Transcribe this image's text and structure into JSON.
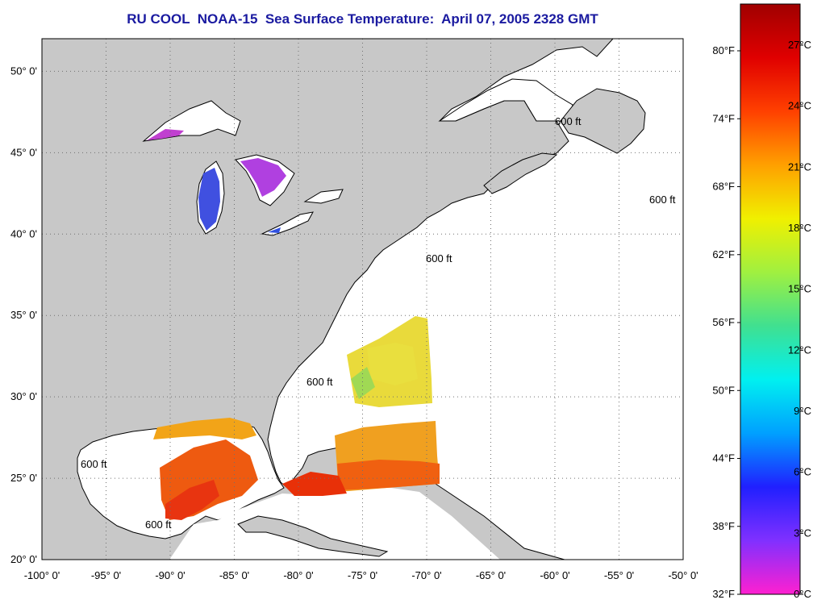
{
  "title": "RU COOL  NOAA-15  Sea Surface Temperature:  April 07, 2005 2328 GMT",
  "map": {
    "lon_range": [
      -100,
      -50
    ],
    "lat_range": [
      20,
      52
    ],
    "lon_ticks": [
      {
        "v": -100,
        "label": "-100° 0'"
      },
      {
        "v": -95,
        "label": "-95° 0'"
      },
      {
        "v": -90,
        "label": "-90° 0'"
      },
      {
        "v": -85,
        "label": "-85° 0'"
      },
      {
        "v": -80,
        "label": "-80° 0'"
      },
      {
        "v": -75,
        "label": "-75° 0'"
      },
      {
        "v": -70,
        "label": "-70° 0'"
      },
      {
        "v": -65,
        "label": "-65° 0'"
      },
      {
        "v": -60,
        "label": "-60° 0'"
      },
      {
        "v": -55,
        "label": "-55° 0'"
      },
      {
        "v": -50,
        "label": "-50° 0'"
      }
    ],
    "lat_ticks": [
      {
        "v": 20,
        "label": "20° 0'"
      },
      {
        "v": 25,
        "label": "25° 0'"
      },
      {
        "v": 30,
        "label": "30° 0'"
      },
      {
        "v": 35,
        "label": "35° 0'"
      },
      {
        "v": 40,
        "label": "40° 0'"
      },
      {
        "v": 45,
        "label": "45° 0'"
      },
      {
        "v": 50,
        "label": "50° 0'"
      }
    ],
    "isobath_label": "600 ft",
    "colors": {
      "land": "#c8c8c8",
      "water": "#ffffff",
      "grid": "#707070"
    }
  },
  "colorbar": {
    "celsius_labels": [
      "27°C",
      "24°C",
      "21°C",
      "18°C",
      "15°C",
      "12°C",
      "9°C",
      "6°C",
      "3°C",
      "0°C"
    ],
    "fahrenheit_labels": [
      "80°F",
      "74°F",
      "68°F",
      "62°F",
      "56°F",
      "50°F",
      "44°F",
      "38°F",
      "32°F"
    ],
    "color_stops": [
      "#ff20d0",
      "#8030ff",
      "#2020ff",
      "#00a0ff",
      "#00f0f0",
      "#40e090",
      "#a0f040",
      "#f0f000",
      "#ffa000",
      "#ff4000",
      "#e00000",
      "#a00000"
    ]
  }
}
